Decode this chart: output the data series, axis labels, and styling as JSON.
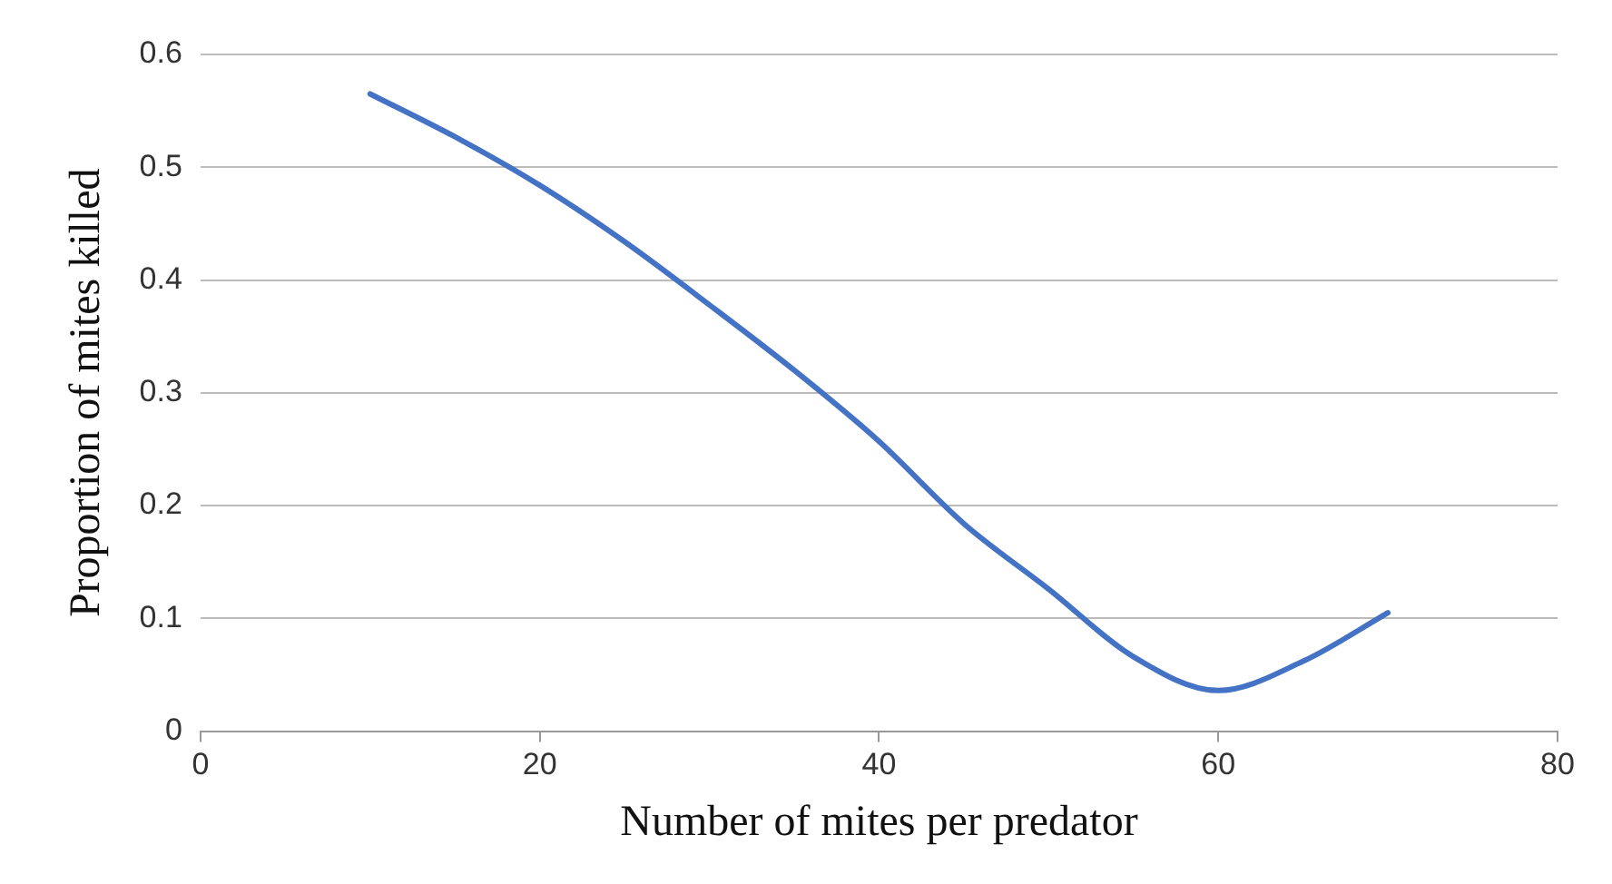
{
  "chart_data": {
    "type": "line",
    "xlabel": "Number of mites per predator",
    "ylabel": "Proportion of mites killed",
    "x": [
      10,
      15,
      20,
      25,
      30,
      35,
      40,
      45,
      50,
      55,
      60,
      65,
      70
    ],
    "series": [
      {
        "color": "#4472c4",
        "values": [
          0.565,
          0.527,
          0.484,
          0.434,
          0.378,
          0.32,
          0.257,
          0.184,
          0.126,
          0.066,
          0.036,
          0.062,
          0.105
        ]
      }
    ],
    "xlim": [
      0,
      80
    ],
    "xticks": [
      0,
      20,
      40,
      60,
      80
    ],
    "ylim": [
      0,
      0.6
    ],
    "yticks": [
      0,
      0.1,
      0.2,
      0.3,
      0.4,
      0.5,
      0.6
    ],
    "grid": "y",
    "legend": false,
    "marker": "none",
    "line_style": "solid"
  }
}
